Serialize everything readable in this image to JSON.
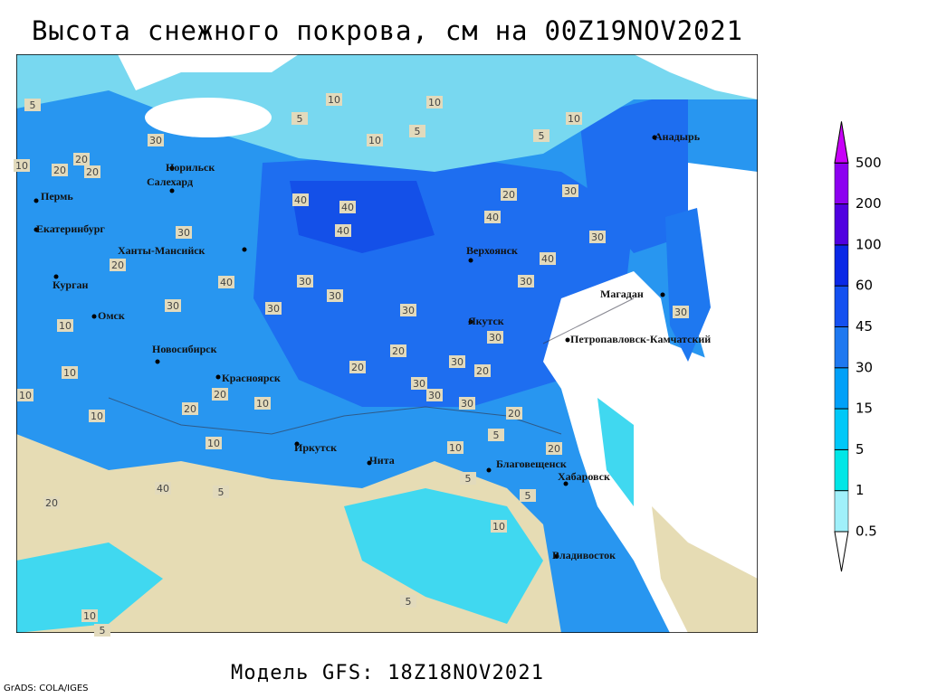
{
  "header": {
    "title": "Высота снежного покрова, см на 00Z19NOV2021"
  },
  "footer": {
    "model": "Модель GFS: 18Z18NOV2021",
    "credit": "GrADS: COLA/IGES"
  },
  "map": {
    "cities": [
      "Анадырь",
      "Норильск",
      "Салехард",
      "Пермь",
      "Екатеринбург",
      "Ханты-Мансийск",
      "Верхоянск",
      "Курган",
      "Магадан",
      "Омск",
      "Якутск",
      "Петропавловск-Камчатский",
      "Новосибирск",
      "Красноярск",
      "Иркутск",
      "Чита",
      "Благовещенск",
      "Хабаровск",
      "Владивосток"
    ],
    "contour_labels": [
      10,
      10,
      5,
      10,
      5,
      5,
      30,
      20,
      20,
      10,
      20,
      5,
      10,
      20,
      30,
      40,
      30,
      40,
      30,
      40,
      40,
      40,
      30,
      20,
      30,
      30,
      30,
      40,
      30,
      30,
      30,
      20,
      30,
      20,
      20,
      30,
      30,
      30,
      20,
      20,
      10,
      10,
      10,
      10,
      10,
      20,
      20,
      10,
      5,
      5,
      5,
      10,
      5,
      40,
      20,
      5,
      10,
      5,
      10,
      30
    ]
  },
  "legend": {
    "levels": [
      0.5,
      1,
      5,
      15,
      30,
      45,
      60,
      100,
      200,
      500
    ],
    "colors": [
      "#ffffff",
      "#a0f0fa",
      "#00e6e6",
      "#00c8f8",
      "#00a0f8",
      "#1e78f0",
      "#1450f0",
      "#0a28e6",
      "#5000e0",
      "#8c00f0",
      "#c800f8"
    ]
  }
}
